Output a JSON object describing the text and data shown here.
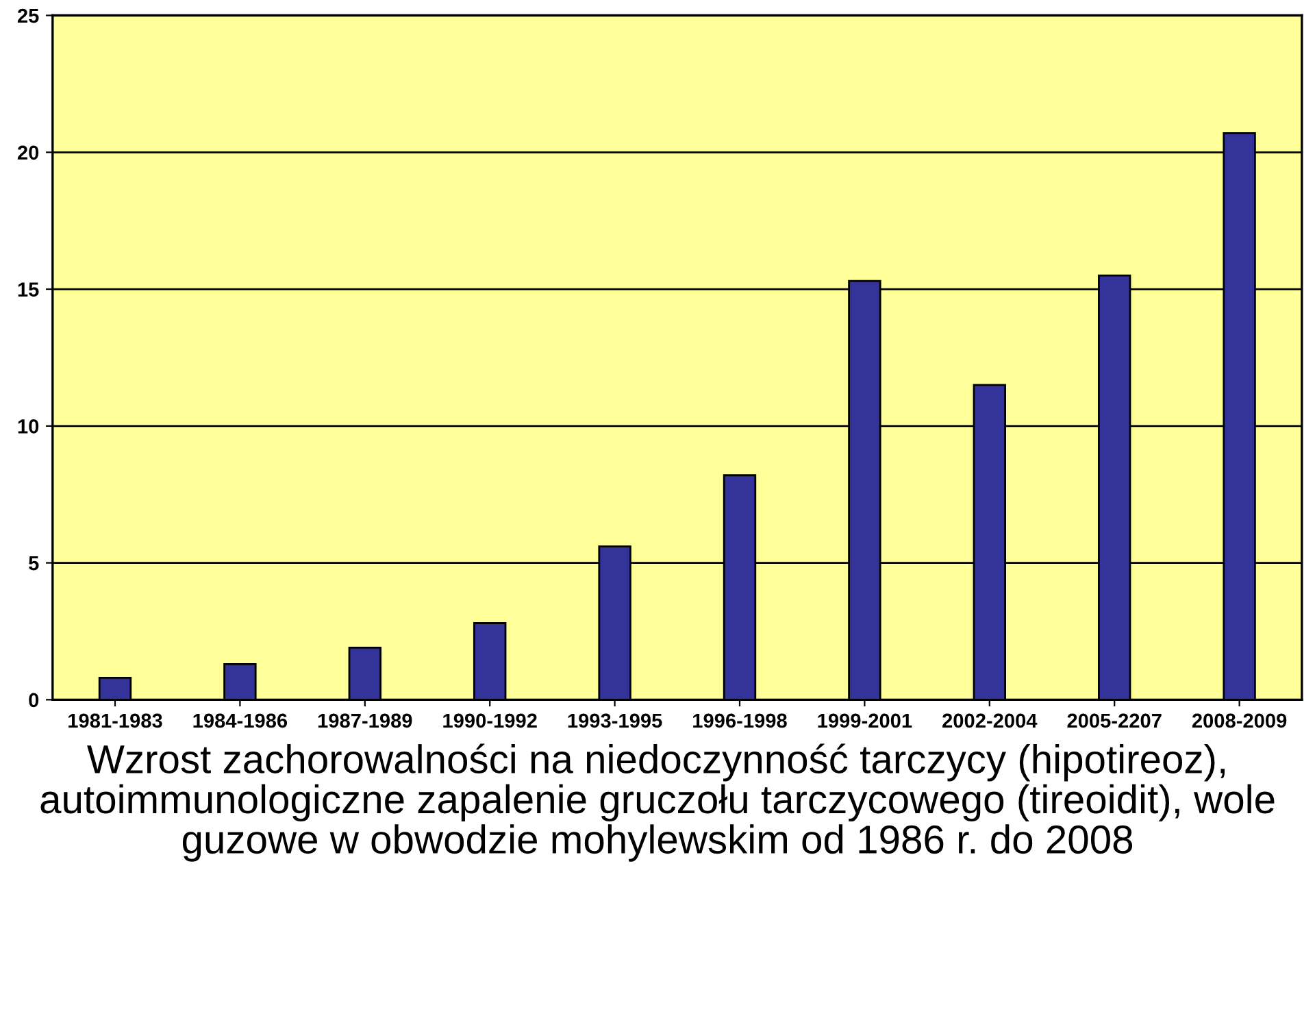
{
  "chart_data": {
    "type": "bar",
    "title": "Wzrost zachorowalności na niedoczynność tarczycy (hipotireoz), autoimmunologiczne zapalenie gruczołu tarczycowego (tireoidit), wole guzowe w obwodzie mohylewskim od 1986 r. do 2008",
    "categories": [
      "1981-1983",
      "1984-1986",
      "1987-1989",
      "1990-1992",
      "1993-1995",
      "1996-1998",
      "1999-2001",
      "2002-2004",
      "2005-2207",
      "2008-2009"
    ],
    "values": [
      0.8,
      1.3,
      1.9,
      2.8,
      5.6,
      8.2,
      15.3,
      11.5,
      15.5,
      20.7
    ],
    "color": "#333399",
    "ylim": [
      0,
      25
    ],
    "yticks": [
      0,
      5,
      10,
      15,
      20,
      25
    ],
    "grid": "y"
  }
}
